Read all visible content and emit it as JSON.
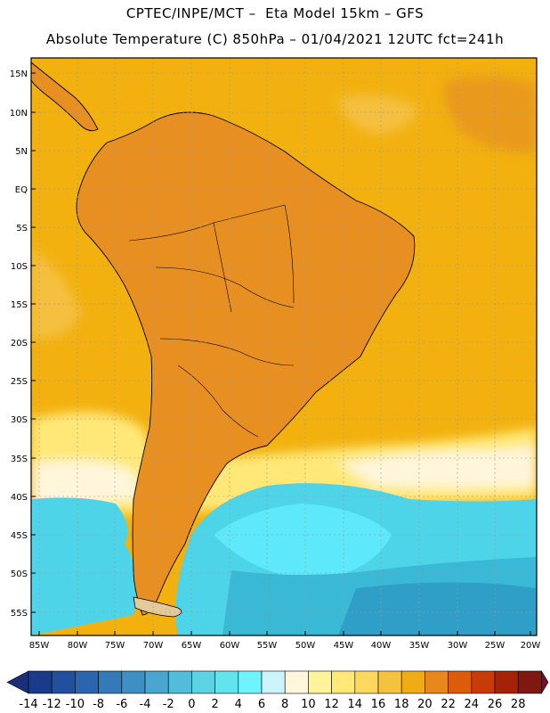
{
  "header": {
    "line1": "CPTEC/INPE/MCT –  Eta Model 15km – GFS",
    "line2": "Absolute Temperature (C) 850hPa – 01/04/2021 12UTC fct=241h"
  },
  "map": {
    "lon_labels": [
      "85W",
      "80W",
      "75W",
      "70W",
      "65W",
      "60W",
      "55W",
      "50W",
      "45W",
      "40W",
      "35W",
      "30W",
      "25W",
      "20W"
    ],
    "lat_labels": [
      "15N",
      "10N",
      "5N",
      "EQ",
      "5S",
      "10S",
      "15S",
      "20S",
      "25S",
      "30S",
      "35S",
      "40S",
      "45S",
      "50S",
      "55S"
    ],
    "land_color": "#e88f22",
    "ocean_warm_color": "#f2b10f",
    "cold_colors": [
      "#4ed4e9",
      "#5ee9fb",
      "#3ab9d6"
    ]
  },
  "colorbar": {
    "labels": [
      "-14",
      "-12",
      "-10",
      "-8",
      "-6",
      "-4",
      "-2",
      "0",
      "2",
      "4",
      "6",
      "8",
      "10",
      "12",
      "14",
      "16",
      "18",
      "20",
      "22",
      "24",
      "26",
      "28"
    ],
    "colors": [
      "#1a3a8a",
      "#23509e",
      "#2b65ae",
      "#3479b8",
      "#3d8fc4",
      "#48a6cf",
      "#52bcd9",
      "#5dd2e3",
      "#62e4ee",
      "#6ef4ff",
      "#ccf4ff",
      "#fff6dc",
      "#fff49a",
      "#ffe878",
      "#fcd85e",
      "#f5c23d",
      "#f0ac14",
      "#e8881c",
      "#dc5c0c",
      "#c83a06",
      "#a52206",
      "#7f1810"
    ],
    "left_arrow": "#1a2f78",
    "right_arrow": "#7a0f24"
  }
}
